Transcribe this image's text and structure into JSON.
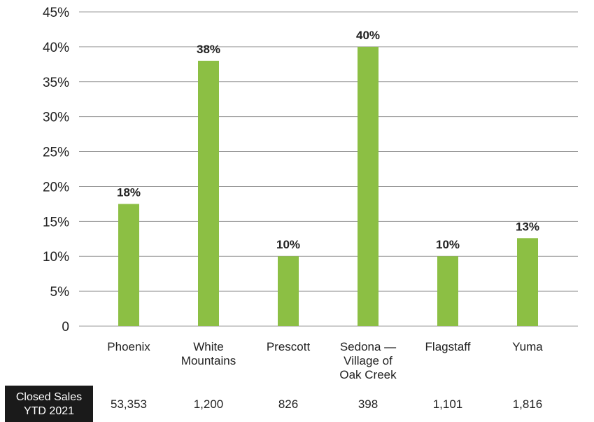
{
  "chart_data": {
    "type": "bar",
    "categories": [
      [
        "Phoenix"
      ],
      [
        "White",
        "Mountains"
      ],
      [
        "Prescott"
      ],
      [
        "Sedona —",
        "Village of",
        "Oak Creek"
      ],
      [
        "Flagstaff"
      ],
      [
        "Yuma"
      ]
    ],
    "values": [
      17.5,
      38,
      10,
      40,
      10,
      12.6
    ],
    "data_labels": [
      "18%",
      "38%",
      "10%",
      "40%",
      "10%",
      "13%"
    ],
    "ylim": [
      0,
      45
    ],
    "y_ticks": [
      0,
      5,
      10,
      15,
      20,
      25,
      30,
      35,
      40,
      45
    ],
    "y_tick_labels": [
      "0",
      "5%",
      "10%",
      "15%",
      "20%",
      "25%",
      "30%",
      "35%",
      "40%",
      "45%"
    ],
    "grid": true,
    "bar_color": "#8cbf44",
    "grid_color": "#9a9a9a"
  },
  "sales_row": {
    "title_lines": [
      "Closed Sales",
      "YTD 2021"
    ],
    "values": [
      "53,353",
      "1,200",
      "826",
      "398",
      "1,101",
      "1,816"
    ],
    "title_bg": "#1a1a1a"
  }
}
